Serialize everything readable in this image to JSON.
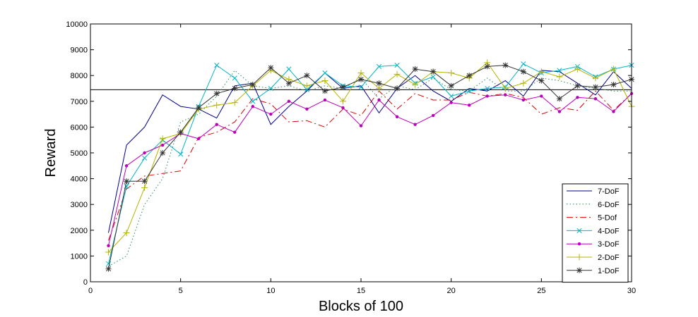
{
  "chart_data": {
    "type": "line",
    "xlabel": "Blocks of 100",
    "ylabel": "Reward",
    "xlim": [
      0,
      30
    ],
    "ylim": [
      0,
      10000
    ],
    "xticks": [
      "0",
      "5",
      "10",
      "15",
      "20",
      "25",
      "30"
    ],
    "yticks": [
      "0",
      "1000",
      "2000",
      "3000",
      "4000",
      "5000",
      "6000",
      "7000",
      "8000",
      "9000",
      "10000"
    ],
    "grid": false,
    "legend_position": "bottom-right",
    "reference_line": 7450,
    "x": [
      1,
      2,
      3,
      4,
      5,
      6,
      7,
      8,
      9,
      10,
      11,
      12,
      13,
      14,
      15,
      16,
      17,
      18,
      19,
      20,
      21,
      22,
      23,
      24,
      25,
      26,
      27,
      28,
      29,
      30
    ],
    "series": [
      {
        "name": "7-DoF",
        "color": "#00008b",
        "dash": "",
        "marker": "none",
        "values": [
          1900,
          5300,
          6000,
          7250,
          6800,
          6700,
          6350,
          7600,
          7700,
          6100,
          6800,
          7400,
          8100,
          7500,
          7600,
          6550,
          7500,
          8000,
          7400,
          7000,
          7500,
          7400,
          7800,
          7200,
          8200,
          8150,
          7700,
          7250,
          8150,
          7500
        ]
      },
      {
        "name": "6-DoF",
        "color": "#2e8b57",
        "dash": "1.5,3",
        "marker": "none",
        "values": [
          600,
          1000,
          3000,
          4000,
          6200,
          6500,
          7200,
          8200,
          7600,
          7500,
          7600,
          7400,
          7600,
          7500,
          7900,
          7100,
          7600,
          7450,
          7900,
          7450,
          7400,
          7900,
          7400,
          7400,
          7900,
          7800,
          7600,
          7500,
          7400,
          7400
        ]
      },
      {
        "name": "5-Dof",
        "color": "#dd0000",
        "dash": "9,4,2,4",
        "marker": "none",
        "values": [
          1600,
          3600,
          4100,
          4200,
          4300,
          5600,
          5800,
          6200,
          7100,
          6900,
          6200,
          6250,
          6000,
          6700,
          6450,
          7400,
          6700,
          7300,
          7050,
          7050,
          7350,
          7200,
          7300,
          7150,
          6500,
          6750,
          6650,
          7400,
          6650,
          7300
        ]
      },
      {
        "name": "4-DoF",
        "color": "#00b4c8",
        "dash": "",
        "marker": "x",
        "values": [
          700,
          3700,
          4800,
          5500,
          4950,
          6800,
          8400,
          7900,
          7000,
          7500,
          8250,
          7450,
          8100,
          7600,
          7550,
          8350,
          8400,
          7700,
          7950,
          7200,
          7400,
          7500,
          7550,
          8450,
          8100,
          8200,
          8350,
          7950,
          8250,
          8400
        ]
      },
      {
        "name": "3-DoF",
        "color": "#bb00bb",
        "dash": "",
        "marker": "dot",
        "values": [
          1400,
          4500,
          5000,
          5300,
          5750,
          5550,
          6100,
          5800,
          6800,
          6500,
          7000,
          6700,
          7050,
          6750,
          6050,
          7050,
          6400,
          6100,
          6450,
          6950,
          6850,
          7200,
          7250,
          7050,
          7200,
          6600,
          7150,
          7100,
          6600,
          7300
        ]
      },
      {
        "name": "2-DoF",
        "color": "#b4b400",
        "dash": "",
        "marker": "plus",
        "values": [
          1150,
          1900,
          3650,
          5550,
          5750,
          6700,
          6850,
          6950,
          7600,
          8200,
          7850,
          7600,
          7800,
          7000,
          8100,
          7500,
          8050,
          7650,
          8150,
          8100,
          7900,
          8500,
          7500,
          7700,
          8150,
          7950,
          8250,
          7900,
          8250,
          6800
        ]
      },
      {
        "name": "1-DoF",
        "color": "#333333",
        "dash": "",
        "marker": "star",
        "values": [
          500,
          3900,
          3900,
          5000,
          5800,
          6750,
          7300,
          7500,
          7650,
          8300,
          7700,
          8000,
          7400,
          7550,
          7850,
          7700,
          7500,
          8250,
          8150,
          7600,
          8000,
          8350,
          8400,
          8150,
          7800,
          7100,
          7600,
          7550,
          7650,
          7850
        ]
      }
    ]
  }
}
